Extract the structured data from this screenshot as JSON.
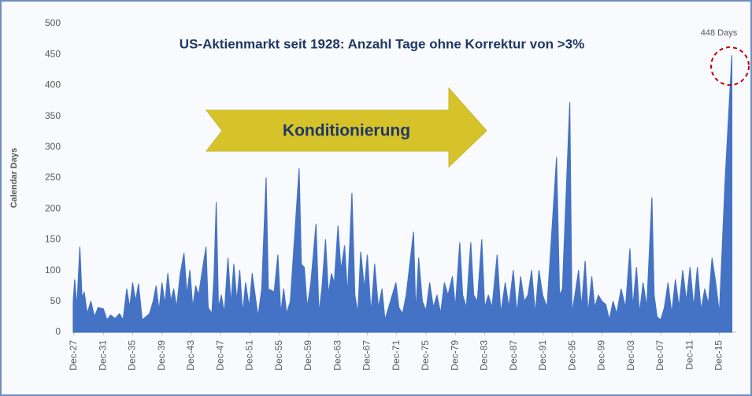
{
  "chart_data": {
    "type": "area",
    "title": "US-Aktienmarkt seit 1928: Anzahl Tage ohne Korrektur von >3%",
    "ylabel": "Calendar Days",
    "annotations": [
      "Konditionierung",
      "448 Days"
    ],
    "color": "#4472c4",
    "xlim": [
      1927.9,
      2018.3
    ],
    "ylim": [
      0,
      500
    ],
    "yticks": [
      0,
      50,
      100,
      150,
      200,
      250,
      300,
      350,
      400,
      450,
      500
    ],
    "xticks": [
      {
        "value": 1928,
        "label": "Dec-27"
      },
      {
        "value": 1932,
        "label": "Dec-31"
      },
      {
        "value": 1936,
        "label": "Dec-35"
      },
      {
        "value": 1940,
        "label": "Dec-39"
      },
      {
        "value": 1944,
        "label": "Dec-43"
      },
      {
        "value": 1948,
        "label": "Dec-47"
      },
      {
        "value": 1952,
        "label": "Dec-51"
      },
      {
        "value": 1956,
        "label": "Dec-55"
      },
      {
        "value": 1960,
        "label": "Dec-59"
      },
      {
        "value": 1964,
        "label": "Dec-63"
      },
      {
        "value": 1968,
        "label": "Dec-67"
      },
      {
        "value": 1972,
        "label": "Dec-71"
      },
      {
        "value": 1976,
        "label": "Dec-75"
      },
      {
        "value": 1980,
        "label": "Dec-79"
      },
      {
        "value": 1984,
        "label": "Dec-83"
      },
      {
        "value": 1988,
        "label": "Dec-87"
      },
      {
        "value": 1992,
        "label": "Dec-91"
      },
      {
        "value": 1996,
        "label": "Dec-95"
      },
      {
        "value": 2000,
        "label": "Dec-99"
      },
      {
        "value": 2004,
        "label": "Dec-03"
      },
      {
        "value": 2008,
        "label": "Dec-07"
      },
      {
        "value": 2012,
        "label": "Dec-11"
      },
      {
        "value": 2016,
        "label": "Dec-15"
      }
    ],
    "x": [
      1927.9,
      1928.1,
      1928.4,
      1928.8,
      1929.1,
      1929.4,
      1929.8,
      1930.3,
      1930.8,
      1931.3,
      1932,
      1932.5,
      1933,
      1933.6,
      1934.2,
      1934.7,
      1935.2,
      1935.6,
      1936,
      1936.4,
      1936.8,
      1937.3,
      1937.8,
      1938.3,
      1938.8,
      1939.2,
      1939.6,
      1940,
      1940.4,
      1940.8,
      1941.2,
      1941.6,
      1942,
      1942.5,
      1943,
      1943.4,
      1943.8,
      1944.2,
      1944.6,
      1945,
      1945.5,
      1946,
      1946.3,
      1946.8,
      1947.1,
      1947.4,
      1947.7,
      1948.1,
      1948.5,
      1949,
      1949.4,
      1949.8,
      1950.2,
      1950.6,
      1951,
      1951.4,
      1951.9,
      1952.3,
      1952.7,
      1953.1,
      1953.6,
      1954.2,
      1954.5,
      1954.9,
      1955.3,
      1955.8,
      1956.2,
      1956.6,
      1957,
      1957.5,
      1958.7,
      1959,
      1959.4,
      1959.8,
      1960.3,
      1961,
      1961.4,
      1961.8,
      1962.3,
      1962.7,
      1963.1,
      1963.5,
      1964,
      1964.4,
      1964.9,
      1965.3,
      1965.9,
      1966.3,
      1966.7,
      1967.1,
      1967.6,
      1968,
      1968.5,
      1969,
      1969.5,
      1970,
      1970.4,
      1970.9,
      1971.4,
      1971.9,
      1972.3,
      1972.8,
      1973.3,
      1974.3,
      1974.6,
      1975,
      1975.5,
      1976,
      1976.5,
      1977,
      1977.5,
      1978,
      1978.5,
      1979,
      1979.6,
      1980,
      1980.6,
      1981,
      1981.5,
      1982.1,
      1982.5,
      1983,
      1983.6,
      1984,
      1984.5,
      1985,
      1985.7,
      1986.2,
      1986.8,
      1987.3,
      1987.9,
      1988.4,
      1988.9,
      1989.4,
      1989.9,
      1990.4,
      1990.9,
      1991.4,
      1991.9,
      1992.5,
      1993.8,
      1994.2,
      1994.6,
      1995.6,
      1995.9,
      1996.3,
      1996.8,
      1997.2,
      1997.7,
      1998.1,
      1998.6,
      1999,
      1999.5,
      2000,
      2000.5,
      2001,
      2001.5,
      2002,
      2002.6,
      2003.2,
      2003.8,
      2004.2,
      2004.7,
      2005.1,
      2005.6,
      2006.1,
      2006.8,
      2007.1,
      2007.5,
      2008,
      2008.5,
      2009,
      2009.5,
      2010,
      2010.5,
      2011,
      2011.5,
      2012,
      2012.5,
      2013,
      2013.5,
      2014,
      2014.5,
      2015,
      2015.5,
      2016,
      2016.8,
      2017.7
    ],
    "values": [
      50,
      85,
      40,
      138,
      55,
      65,
      30,
      50,
      25,
      40,
      38,
      20,
      28,
      22,
      30,
      20,
      70,
      40,
      80,
      50,
      78,
      20,
      25,
      30,
      50,
      75,
      35,
      80,
      45,
      95,
      50,
      70,
      40,
      95,
      128,
      60,
      100,
      40,
      75,
      60,
      100,
      138,
      40,
      30,
      90,
      210,
      40,
      60,
      30,
      120,
      45,
      110,
      50,
      100,
      30,
      80,
      40,
      95,
      60,
      25,
      70,
      250,
      70,
      68,
      65,
      125,
      30,
      70,
      30,
      50,
      265,
      110,
      105,
      40,
      80,
      175,
      30,
      70,
      150,
      60,
      95,
      80,
      172,
      100,
      140,
      60,
      225,
      60,
      30,
      130,
      70,
      125,
      30,
      110,
      40,
      70,
      20,
      40,
      60,
      80,
      40,
      30,
      60,
      162,
      30,
      120,
      50,
      35,
      80,
      40,
      60,
      30,
      80,
      60,
      90,
      40,
      145,
      60,
      40,
      145,
      60,
      50,
      150,
      40,
      60,
      40,
      125,
      30,
      80,
      40,
      100,
      30,
      90,
      50,
      60,
      100,
      30,
      100,
      60,
      40,
      283,
      60,
      70,
      372,
      30,
      60,
      100,
      40,
      115,
      30,
      90,
      40,
      60,
      50,
      45,
      20,
      50,
      30,
      70,
      40,
      135,
      40,
      105,
      30,
      80,
      40,
      218,
      60,
      25,
      20,
      40,
      80,
      30,
      85,
      40,
      100,
      50,
      105,
      40,
      105,
      35,
      70,
      45,
      120,
      80,
      30,
      250,
      448
    ]
  }
}
